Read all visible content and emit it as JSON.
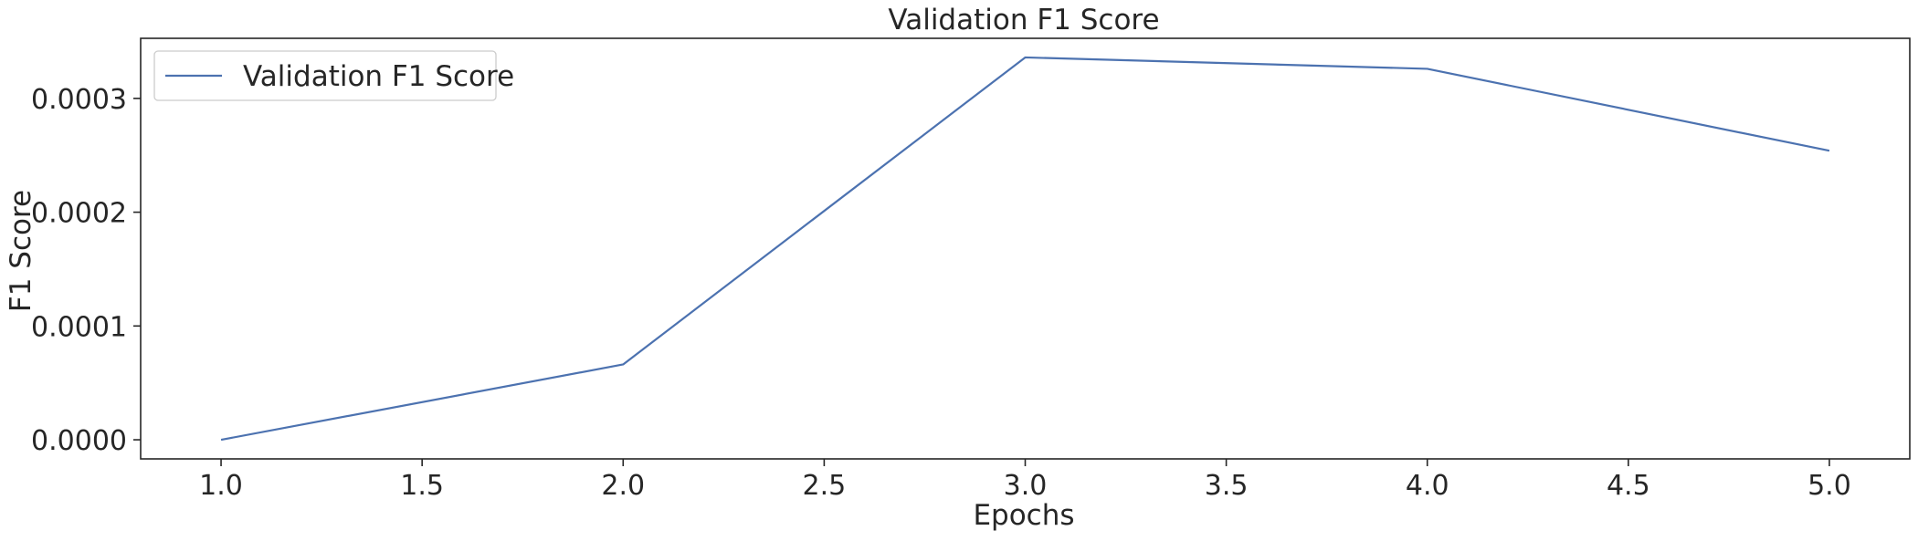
{
  "chart_data": {
    "type": "line",
    "title": "Validation F1 Score",
    "xlabel": "Epochs",
    "ylabel": "F1 Score",
    "x": [
      1.0,
      2.0,
      3.0,
      4.0,
      5.0
    ],
    "series": [
      {
        "name": "Validation F1 Score",
        "values": [
          0.0,
          6.62e-05,
          0.000336,
          0.000326,
          0.000254
        ],
        "color": "#4c72b0"
      }
    ],
    "xlim": [
      0.8,
      5.2
    ],
    "ylim": [
      -1.68e-05,
      0.0003528
    ],
    "xticks": [
      1.0,
      1.5,
      2.0,
      2.5,
      3.0,
      3.5,
      4.0,
      4.5,
      5.0
    ],
    "xtick_labels": [
      "1.0",
      "1.5",
      "2.0",
      "2.5",
      "3.0",
      "3.5",
      "4.0",
      "4.5",
      "5.0"
    ],
    "yticks": [
      0.0,
      0.0001,
      0.0002,
      0.0003
    ],
    "ytick_labels": [
      "0.0000",
      "0.0001",
      "0.0002",
      "0.0003"
    ],
    "grid": false,
    "legend": "top-left"
  }
}
